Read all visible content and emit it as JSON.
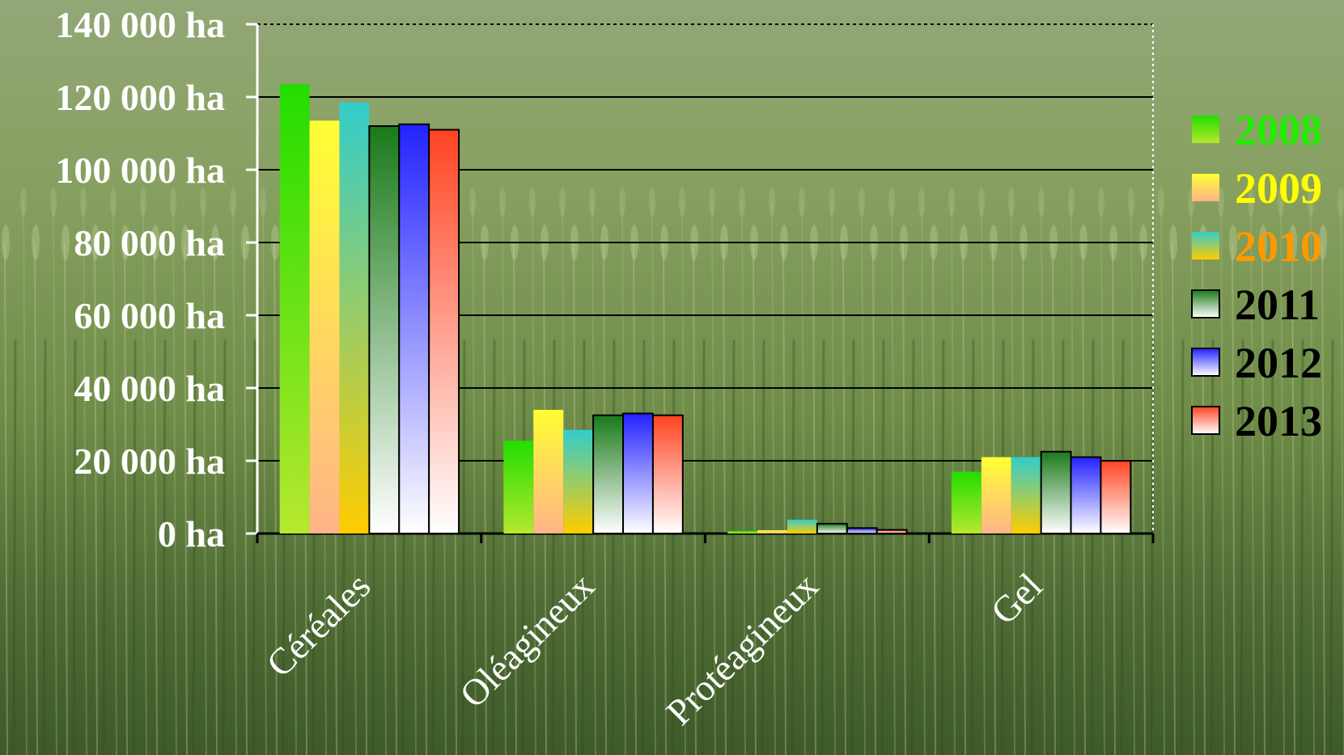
{
  "chart_data": {
    "type": "bar",
    "categories": [
      "Céréales",
      "Oléagineux",
      "Protéagineux",
      "Gel"
    ],
    "series": [
      {
        "name": "2008",
        "values": [
          123500,
          25500,
          700,
          17000
        ],
        "gradient": [
          "#22dd00",
          "#b6e82e"
        ],
        "labelColor": "#22ee00"
      },
      {
        "name": "2009",
        "values": [
          113500,
          34000,
          900,
          21000
        ],
        "gradient": [
          "#ffff33",
          "#ffb488"
        ],
        "labelColor": "#ffff00"
      },
      {
        "name": "2010",
        "values": [
          118500,
          28500,
          3800,
          21000
        ],
        "gradient": [
          "#33cccc",
          "#ffcc00"
        ],
        "labelColor": "#ff9900"
      },
      {
        "name": "2011",
        "values": [
          112000,
          32500,
          2700,
          22500
        ],
        "gradient": [
          "#1a7a1a",
          "#ffffff"
        ],
        "labelColor": "#000000"
      },
      {
        "name": "2012",
        "values": [
          112500,
          33000,
          1500,
          21000
        ],
        "gradient": [
          "#2222ff",
          "#ffffff"
        ],
        "labelColor": "#000000"
      },
      {
        "name": "2013",
        "values": [
          111000,
          32500,
          1000,
          20000
        ],
        "gradient": [
          "#ff4422",
          "#ffffff"
        ],
        "labelColor": "#000000"
      }
    ],
    "ylim": [
      0,
      140000
    ],
    "yticks": [
      0,
      20000,
      40000,
      60000,
      80000,
      100000,
      120000,
      140000
    ],
    "ytick_labels": [
      "0 ha",
      "20 000 ha",
      "40 000 ha",
      "60 000 ha",
      "80 000 ha",
      "100 000 ha",
      "120 000 ha",
      "140 000 ha"
    ],
    "grid": true,
    "legend_position": "right",
    "background": "wheat field photograph"
  }
}
